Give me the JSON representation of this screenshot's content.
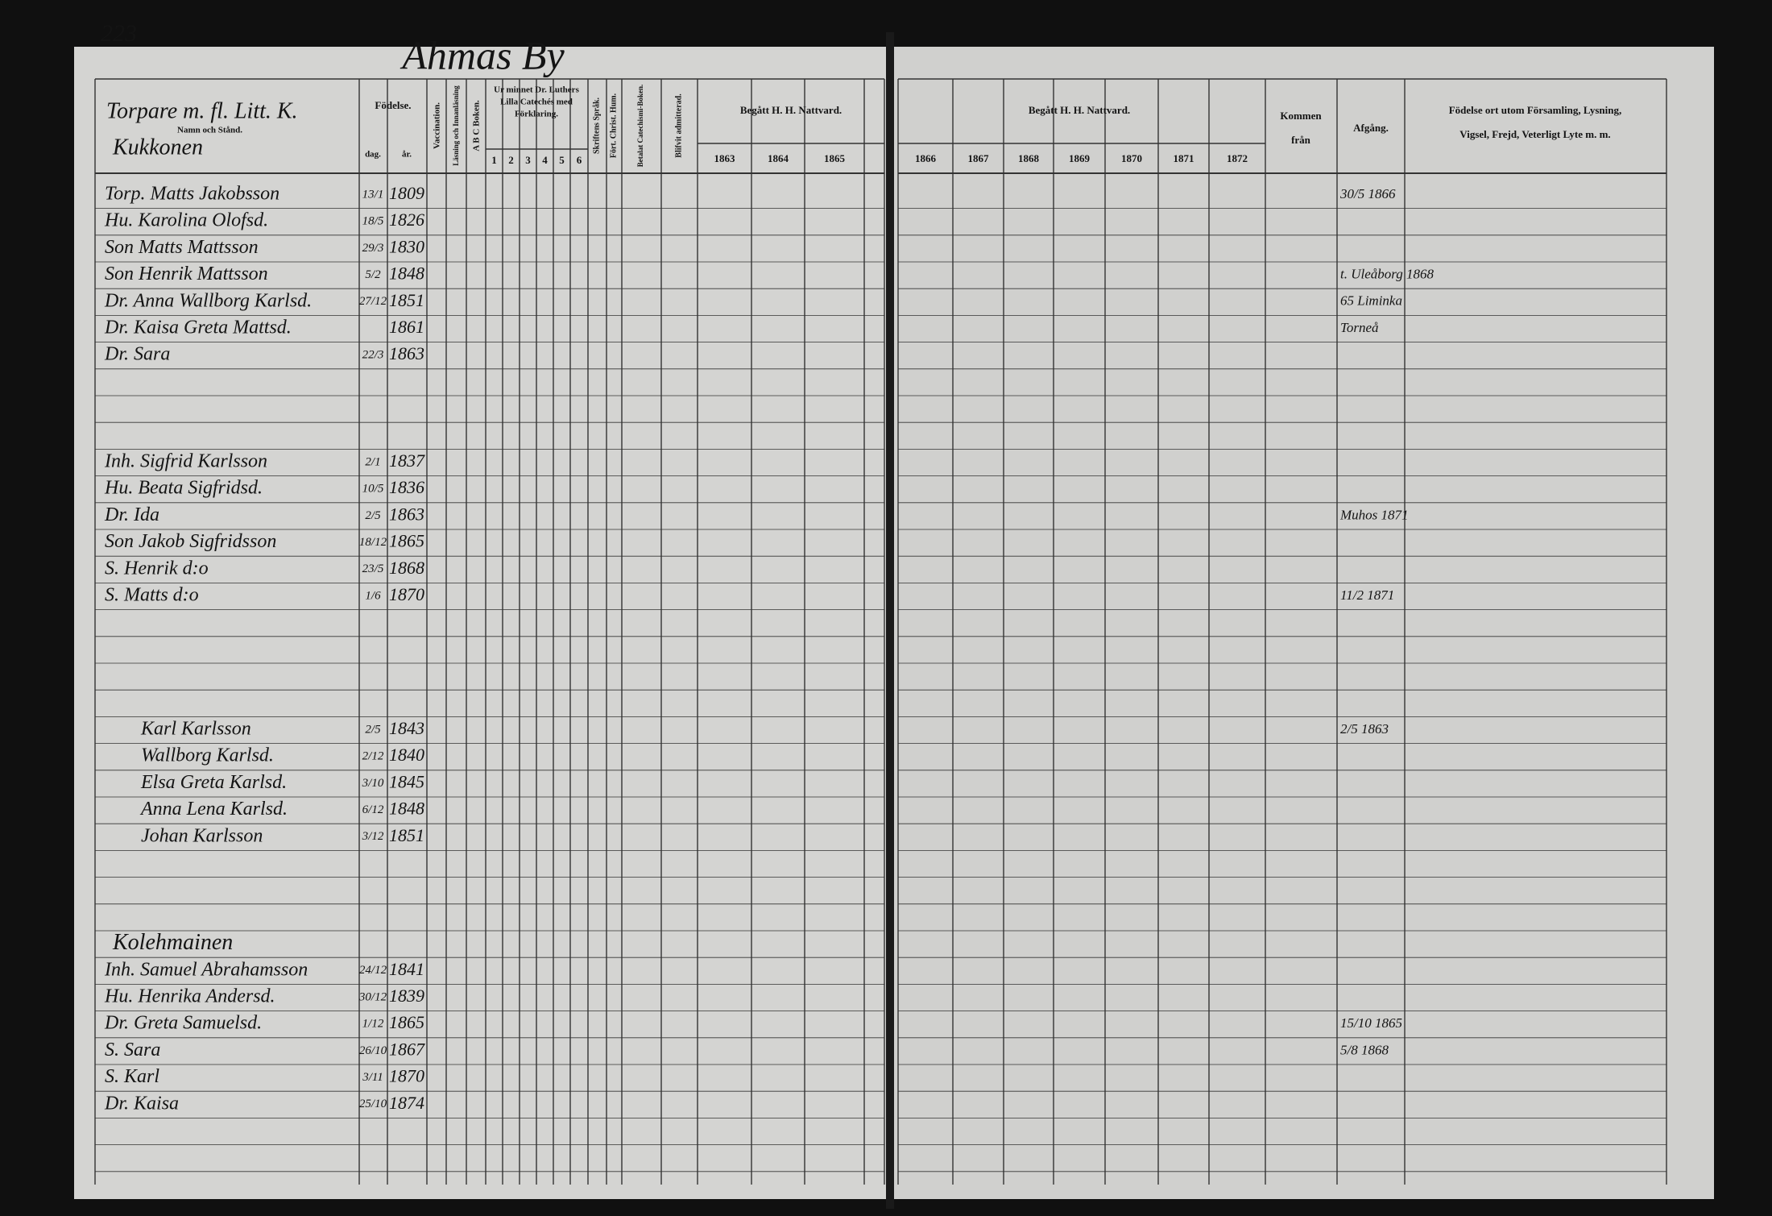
{
  "page_number": "223",
  "title": "Ahmas By",
  "left_header": {
    "name_title": "Torpare m. fl. Litt. K.",
    "name_sub": "Namn och Stånd.",
    "birth": "Födelse.",
    "day": "dag.",
    "year": "år.",
    "vaccination": "Vaccination.",
    "reading": "Läsning och Innanläsning",
    "abc": "A B C Boken.",
    "catechism": [
      "Ur minnet Dr. Luthers",
      "Lilla Catechés med",
      "Förklaring."
    ],
    "catechism_parts": [
      "1",
      "2",
      "3",
      "4",
      "5",
      "6"
    ],
    "scripture": "Skriftens Språk.",
    "christianity": "Fört. Christ. Hum.",
    "catechism_book": "Betalat Catechismi-Boken.",
    "admitted": "Blifvit admitterad.",
    "communion": "Begått H. H. Nattvard.",
    "years": [
      "1863",
      "1864",
      "1865"
    ]
  },
  "right_header": {
    "communion": "Begått H. H. Nattvard.",
    "years": [
      "1866",
      "1867",
      "1868",
      "1869",
      "1870",
      "1871",
      "1872"
    ],
    "arrived_from": [
      "Kommen",
      "från"
    ],
    "departure": "Afgång.",
    "remarks": [
      "Födelse ort utom Församling, Lysning,",
      "Vigsel, Frejd, Veterligt Lyte m. m."
    ]
  },
  "households": [
    {
      "name": "Kukkonen",
      "rows": [
        {
          "name": "Torp. Matts Jakobsson",
          "day": "13/1",
          "year": "1809",
          "departure": "30/5 1866"
        },
        {
          "name": "Hu. Karolina Olofsd.",
          "day": "18/5",
          "year": "1826"
        },
        {
          "name": "Son Matts Mattsson",
          "day": "29/3",
          "year": "1830"
        },
        {
          "name": "Son Henrik Mattsson",
          "day": "5/2",
          "year": "1848",
          "departure": "t. Uleåborg 1868"
        },
        {
          "name": "Dr. Anna Wallborg Karlsd.",
          "day": "27/12",
          "year": "1851",
          "departure": "65 Liminka"
        },
        {
          "name": "Dr. Kaisa Greta Mattsd.",
          "year": "1861",
          "departure": "Torneå"
        },
        {
          "name": "Dr. Sara",
          "day": "22/3",
          "year": "1863"
        }
      ]
    },
    {
      "rows": [
        {
          "name": "Inh. Sigfrid Karlsson",
          "day": "2/1",
          "year": "1837"
        },
        {
          "name": "Hu. Beata Sigfridsd.",
          "day": "10/5",
          "year": "1836"
        },
        {
          "name": "Dr. Ida",
          "day": "2/5",
          "year": "1863",
          "departure": "Muhos 1871"
        },
        {
          "name": "Son Jakob Sigfridsson",
          "day": "18/12",
          "year": "1865"
        },
        {
          "name": "S. Henrik d:o",
          "day": "23/5",
          "year": "1868"
        },
        {
          "name": "S. Matts d:o",
          "day": "1/6",
          "year": "1870",
          "departure": "11/2 1871"
        }
      ]
    },
    {
      "rows": [
        {
          "name": "Karl Karlsson",
          "day": "2/5",
          "year": "1843",
          "departure": "2/5 1863"
        },
        {
          "name": "Wallborg Karlsd.",
          "day": "2/12",
          "year": "1840"
        },
        {
          "name": "Elsa Greta Karlsd.",
          "day": "3/10",
          "year": "1845"
        },
        {
          "name": "Anna Lena Karlsd.",
          "day": "6/12",
          "year": "1848"
        },
        {
          "name": "Johan Karlsson",
          "day": "3/12",
          "year": "1851"
        }
      ]
    },
    {
      "name": "Kolehmainen",
      "rows": [
        {
          "name": "Inh. Samuel Abrahamsson",
          "day": "24/12",
          "year": "1841"
        },
        {
          "name": "Hu. Henrika Andersd.",
          "day": "30/12",
          "year": "1839"
        },
        {
          "name": "Dr. Greta Samuelsd.",
          "day": "1/12",
          "year": "1865",
          "departure": "15/10 1865"
        },
        {
          "name": "S. Sara",
          "day": "26/10",
          "year": "1867",
          "departure": "5/8 1868"
        },
        {
          "name": "S. Karl",
          "day": "3/11",
          "year": "1870"
        },
        {
          "name": "Dr. Kaisa",
          "day": "25/10",
          "year": "1874"
        }
      ]
    }
  ]
}
